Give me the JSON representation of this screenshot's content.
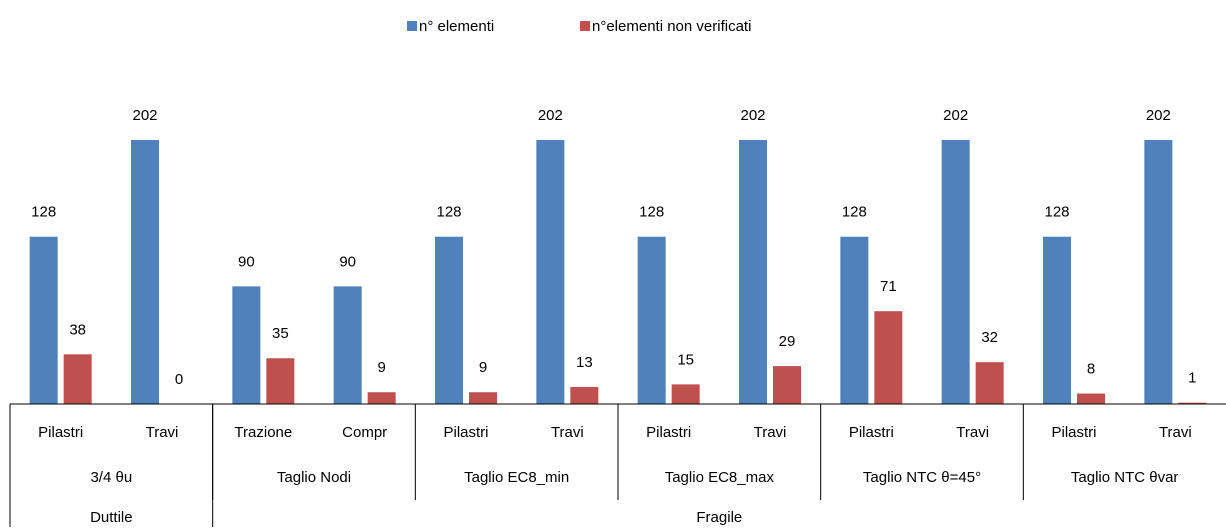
{
  "chart_data": {
    "type": "bar",
    "categories": [
      "Pilastri",
      "Travi",
      "Trazione",
      "Compr",
      "Pilastri",
      "Travi",
      "Pilastri",
      "Travi",
      "Pilastri",
      "Travi",
      "Pilastri",
      "Travi"
    ],
    "category_groups": [
      "3/4 θu",
      null,
      "Taglio Nodi",
      null,
      "Taglio EC8_min",
      null,
      "Taglio EC8_max",
      null,
      "Taglio NTC θ=45°",
      null,
      "Taglio NTC θvar",
      null
    ],
    "category_supergroups": [
      "Duttile",
      null,
      "Fragile",
      null,
      null,
      null,
      null,
      null,
      null,
      null,
      null,
      null
    ],
    "series": [
      {
        "name": "n° elementi",
        "color": "#4f81bd",
        "values": [
          128,
          202,
          90,
          90,
          128,
          202,
          128,
          202,
          128,
          202,
          128,
          202
        ]
      },
      {
        "name": "n°elementi non verificati",
        "color": "#c0504d",
        "values": [
          38,
          0,
          35,
          9,
          9,
          13,
          15,
          29,
          71,
          32,
          8,
          1
        ]
      }
    ],
    "legend": "top"
  }
}
